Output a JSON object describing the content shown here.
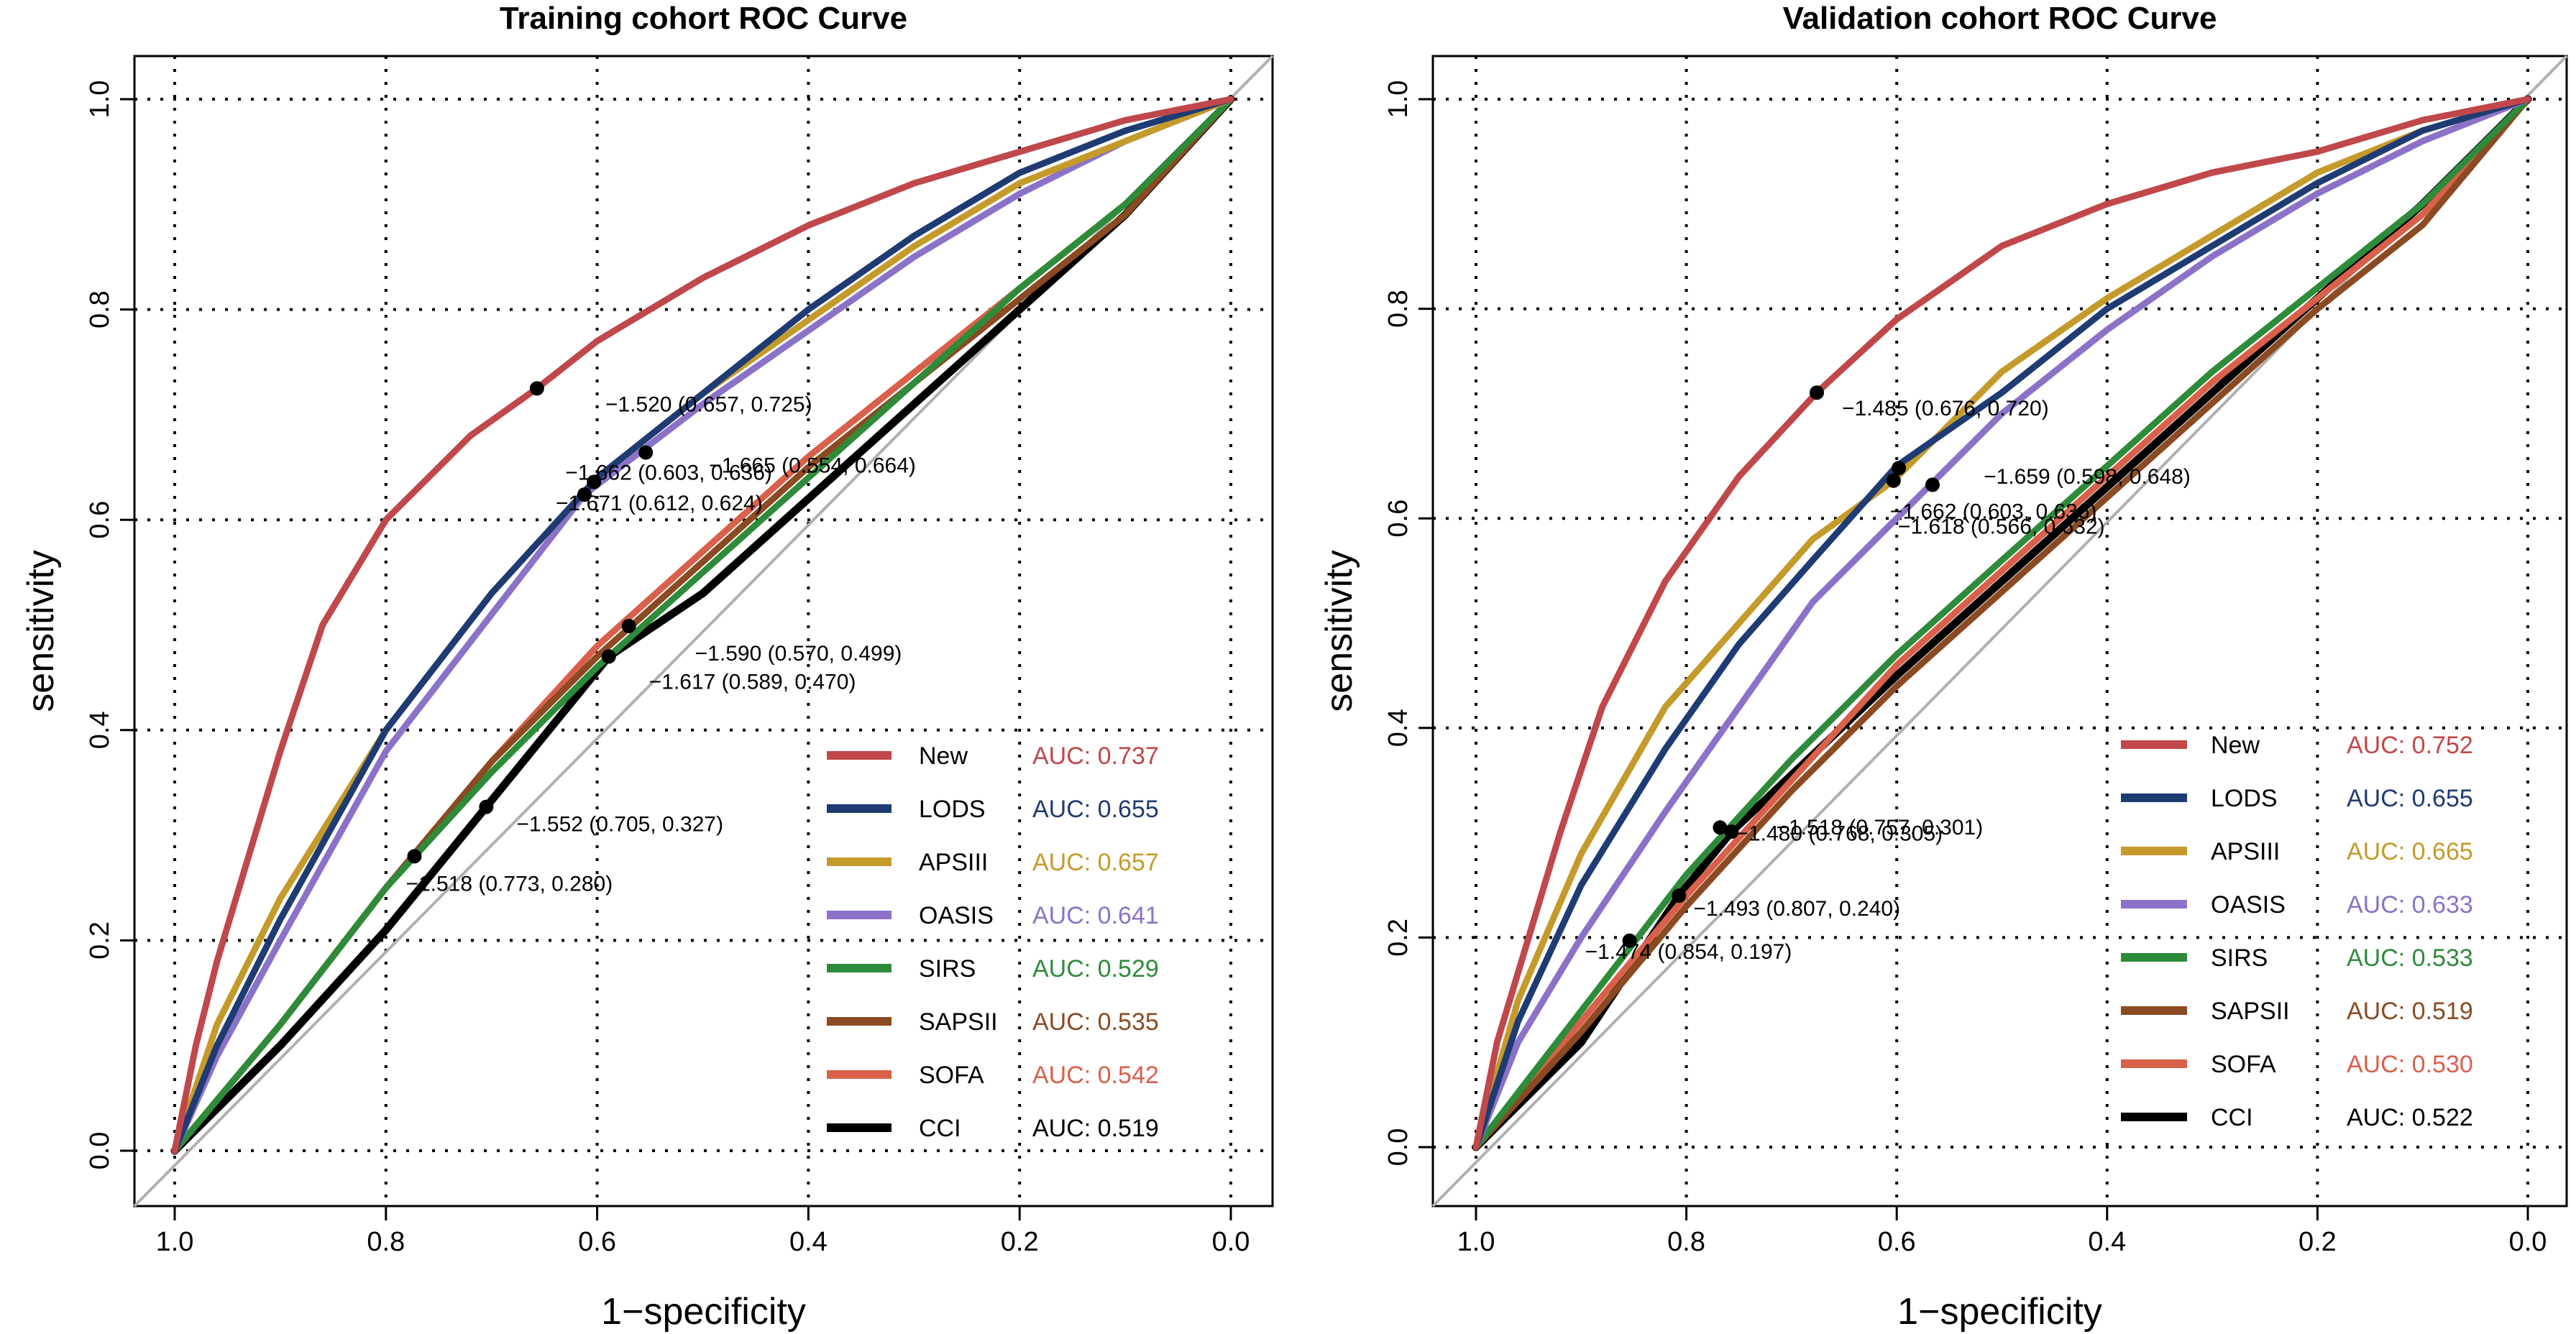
{
  "chart_data": [
    {
      "type": "line",
      "title": "Training cohort ROC Curve",
      "xlabel": "1−specificity",
      "ylabel": "sensitivity",
      "xlim": [
        1.0,
        0.0
      ],
      "ylim": [
        0.0,
        1.0
      ],
      "x_ticks": [
        "1.0",
        "0.8",
        "0.6",
        "0.4",
        "0.2",
        "0.0"
      ],
      "y_ticks": [
        "0.0",
        "0.2",
        "0.4",
        "0.6",
        "0.8",
        "1.0"
      ],
      "grid": true,
      "legend_position": "bottom-right",
      "series": [
        {
          "name": "New",
          "auc": "AUC: 0.737",
          "color": "#c0474a",
          "points": [
            [
              1.0,
              0.0
            ],
            [
              0.98,
              0.1
            ],
            [
              0.96,
              0.18
            ],
            [
              0.93,
              0.28
            ],
            [
              0.9,
              0.38
            ],
            [
              0.86,
              0.5
            ],
            [
              0.8,
              0.6
            ],
            [
              0.72,
              0.68
            ],
            [
              0.657,
              0.725
            ],
            [
              0.6,
              0.77
            ],
            [
              0.5,
              0.83
            ],
            [
              0.4,
              0.88
            ],
            [
              0.3,
              0.92
            ],
            [
              0.2,
              0.95
            ],
            [
              0.1,
              0.98
            ],
            [
              0.0,
              1.0
            ]
          ]
        },
        {
          "name": "LODS",
          "auc": "AUC: 0.655",
          "color": "#1f3b73",
          "points": [
            [
              1.0,
              0.0
            ],
            [
              0.96,
              0.1
            ],
            [
              0.9,
              0.22
            ],
            [
              0.8,
              0.4
            ],
            [
              0.7,
              0.53
            ],
            [
              0.6,
              0.64
            ],
            [
              0.5,
              0.72
            ],
            [
              0.4,
              0.8
            ],
            [
              0.3,
              0.87
            ],
            [
              0.2,
              0.93
            ],
            [
              0.1,
              0.97
            ],
            [
              0.0,
              1.0
            ]
          ]
        },
        {
          "name": "APSIII",
          "auc": "AUC: 0.657",
          "color": "#c49a2a",
          "points": [
            [
              1.0,
              0.0
            ],
            [
              0.96,
              0.12
            ],
            [
              0.9,
              0.24
            ],
            [
              0.8,
              0.4
            ],
            [
              0.7,
              0.53
            ],
            [
              0.6,
              0.64
            ],
            [
              0.5,
              0.72
            ],
            [
              0.4,
              0.79
            ],
            [
              0.3,
              0.86
            ],
            [
              0.2,
              0.92
            ],
            [
              0.1,
              0.96
            ],
            [
              0.0,
              1.0
            ]
          ]
        },
        {
          "name": "OASIS",
          "auc": "AUC: 0.641",
          "color": "#8b72c8",
          "points": [
            [
              1.0,
              0.0
            ],
            [
              0.96,
              0.09
            ],
            [
              0.9,
              0.2
            ],
            [
              0.8,
              0.38
            ],
            [
              0.7,
              0.51
            ],
            [
              0.612,
              0.624
            ],
            [
              0.5,
              0.71
            ],
            [
              0.4,
              0.78
            ],
            [
              0.3,
              0.85
            ],
            [
              0.2,
              0.91
            ],
            [
              0.1,
              0.96
            ],
            [
              0.0,
              1.0
            ]
          ]
        },
        {
          "name": "SIRS",
          "auc": "AUC: 0.529",
          "color": "#2e8b3a",
          "points": [
            [
              1.0,
              0.0
            ],
            [
              0.9,
              0.12
            ],
            [
              0.8,
              0.25
            ],
            [
              0.7,
              0.36
            ],
            [
              0.6,
              0.46
            ],
            [
              0.5,
              0.55
            ],
            [
              0.4,
              0.64
            ],
            [
              0.3,
              0.73
            ],
            [
              0.2,
              0.82
            ],
            [
              0.1,
              0.9
            ],
            [
              0.0,
              1.0
            ]
          ]
        },
        {
          "name": "SAPSII",
          "auc": "AUC: 0.535",
          "color": "#8b4a22",
          "points": [
            [
              1.0,
              0.0
            ],
            [
              0.9,
              0.12
            ],
            [
              0.8,
              0.25
            ],
            [
              0.7,
              0.37
            ],
            [
              0.6,
              0.47
            ],
            [
              0.5,
              0.56
            ],
            [
              0.4,
              0.65
            ],
            [
              0.3,
              0.73
            ],
            [
              0.2,
              0.81
            ],
            [
              0.1,
              0.89
            ],
            [
              0.0,
              1.0
            ]
          ]
        },
        {
          "name": "SOFA",
          "auc": "AUC: 0.542",
          "color": "#d9604a",
          "points": [
            [
              1.0,
              0.0
            ],
            [
              0.9,
              0.12
            ],
            [
              0.8,
              0.25
            ],
            [
              0.7,
              0.37
            ],
            [
              0.6,
              0.48
            ],
            [
              0.5,
              0.57
            ],
            [
              0.4,
              0.66
            ],
            [
              0.3,
              0.74
            ],
            [
              0.2,
              0.82
            ],
            [
              0.1,
              0.9
            ],
            [
              0.0,
              1.0
            ]
          ]
        },
        {
          "name": "CCI",
          "auc": "AUC: 0.519",
          "color": "#000000",
          "points": [
            [
              1.0,
              0.0
            ],
            [
              0.9,
              0.1
            ],
            [
              0.8,
              0.21
            ],
            [
              0.705,
              0.327
            ],
            [
              0.589,
              0.47
            ],
            [
              0.5,
              0.53
            ],
            [
              0.4,
              0.62
            ],
            [
              0.3,
              0.71
            ],
            [
              0.2,
              0.8
            ],
            [
              0.1,
              0.89
            ],
            [
              0.0,
              1.0
            ]
          ]
        }
      ],
      "annotations": [
        {
          "text": "−1.520 (0.657, 0.725)",
          "x": 0.657,
          "y": 0.725
        },
        {
          "text": "−1.665 (0.554, 0.664)",
          "x": 0.554,
          "y": 0.664
        },
        {
          "text": "−1.662 (0.603, 0.636)",
          "x": 0.603,
          "y": 0.636
        },
        {
          "text": "−1.671 (0.612, 0.624)",
          "x": 0.612,
          "y": 0.624
        },
        {
          "text": "−1.590 (0.570, 0.499)",
          "x": 0.57,
          "y": 0.499
        },
        {
          "text": "−1.617 (0.589, 0.470)",
          "x": 0.589,
          "y": 0.47
        },
        {
          "text": "−1.552 (0.705, 0.327)",
          "x": 0.705,
          "y": 0.327
        },
        {
          "text": "−1.518 (0.773, 0.280)",
          "x": 0.773,
          "y": 0.28
        }
      ]
    },
    {
      "type": "line",
      "title": "Validation cohort ROC Curve",
      "xlabel": "1−specificity",
      "ylabel": "sensitivity",
      "xlim": [
        1.0,
        0.0
      ],
      "ylim": [
        0.0,
        1.0
      ],
      "x_ticks": [
        "1.0",
        "0.8",
        "0.6",
        "0.4",
        "0.2",
        "0.0"
      ],
      "y_ticks": [
        "0.0",
        "0.2",
        "0.4",
        "0.6",
        "0.8",
        "1.0"
      ],
      "grid": true,
      "legend_position": "bottom-right",
      "series": [
        {
          "name": "New",
          "auc": "AUC: 0.752",
          "color": "#c0474a",
          "points": [
            [
              1.0,
              0.0
            ],
            [
              0.98,
              0.1
            ],
            [
              0.95,
              0.2
            ],
            [
              0.92,
              0.3
            ],
            [
              0.88,
              0.42
            ],
            [
              0.82,
              0.54
            ],
            [
              0.75,
              0.64
            ],
            [
              0.676,
              0.72
            ],
            [
              0.6,
              0.79
            ],
            [
              0.5,
              0.86
            ],
            [
              0.4,
              0.9
            ],
            [
              0.3,
              0.93
            ],
            [
              0.2,
              0.95
            ],
            [
              0.1,
              0.98
            ],
            [
              0.0,
              1.0
            ]
          ]
        },
        {
          "name": "LODS",
          "auc": "AUC: 0.655",
          "color": "#1f3b73",
          "points": [
            [
              1.0,
              0.0
            ],
            [
              0.96,
              0.12
            ],
            [
              0.9,
              0.25
            ],
            [
              0.82,
              0.38
            ],
            [
              0.75,
              0.48
            ],
            [
              0.68,
              0.56
            ],
            [
              0.6,
              0.65
            ],
            [
              0.5,
              0.72
            ],
            [
              0.4,
              0.8
            ],
            [
              0.3,
              0.86
            ],
            [
              0.2,
              0.92
            ],
            [
              0.1,
              0.97
            ],
            [
              0.0,
              1.0
            ]
          ]
        },
        {
          "name": "APSIII",
          "auc": "AUC: 0.665",
          "color": "#c49a2a",
          "points": [
            [
              1.0,
              0.0
            ],
            [
              0.96,
              0.14
            ],
            [
              0.9,
              0.28
            ],
            [
              0.82,
              0.42
            ],
            [
              0.75,
              0.5
            ],
            [
              0.68,
              0.58
            ],
            [
              0.603,
              0.636
            ],
            [
              0.5,
              0.74
            ],
            [
              0.4,
              0.81
            ],
            [
              0.3,
              0.87
            ],
            [
              0.2,
              0.93
            ],
            [
              0.1,
              0.97
            ],
            [
              0.0,
              1.0
            ]
          ]
        },
        {
          "name": "OASIS",
          "auc": "AUC: 0.633",
          "color": "#8b72c8",
          "points": [
            [
              1.0,
              0.0
            ],
            [
              0.96,
              0.1
            ],
            [
              0.9,
              0.2
            ],
            [
              0.82,
              0.32
            ],
            [
              0.75,
              0.42
            ],
            [
              0.68,
              0.52
            ],
            [
              0.6,
              0.6
            ],
            [
              0.5,
              0.7
            ],
            [
              0.4,
              0.78
            ],
            [
              0.3,
              0.85
            ],
            [
              0.2,
              0.91
            ],
            [
              0.1,
              0.96
            ],
            [
              0.0,
              1.0
            ]
          ]
        },
        {
          "name": "SIRS",
          "auc": "AUC: 0.533",
          "color": "#2e8b3a",
          "points": [
            [
              1.0,
              0.0
            ],
            [
              0.9,
              0.13
            ],
            [
              0.8,
              0.26
            ],
            [
              0.7,
              0.37
            ],
            [
              0.6,
              0.47
            ],
            [
              0.5,
              0.56
            ],
            [
              0.4,
              0.65
            ],
            [
              0.3,
              0.74
            ],
            [
              0.2,
              0.82
            ],
            [
              0.1,
              0.9
            ],
            [
              0.0,
              1.0
            ]
          ]
        },
        {
          "name": "SAPSII",
          "auc": "AUC: 0.519",
          "color": "#8b4a22",
          "points": [
            [
              1.0,
              0.0
            ],
            [
              0.9,
              0.11
            ],
            [
              0.8,
              0.23
            ],
            [
              0.7,
              0.34
            ],
            [
              0.6,
              0.44
            ],
            [
              0.5,
              0.53
            ],
            [
              0.4,
              0.62
            ],
            [
              0.3,
              0.71
            ],
            [
              0.2,
              0.8
            ],
            [
              0.1,
              0.88
            ],
            [
              0.0,
              1.0
            ]
          ]
        },
        {
          "name": "SOFA",
          "auc": "AUC: 0.530",
          "color": "#d9604a",
          "points": [
            [
              1.0,
              0.0
            ],
            [
              0.9,
              0.12
            ],
            [
              0.8,
              0.24
            ],
            [
              0.7,
              0.35
            ],
            [
              0.6,
              0.46
            ],
            [
              0.5,
              0.55
            ],
            [
              0.4,
              0.64
            ],
            [
              0.3,
              0.73
            ],
            [
              0.2,
              0.81
            ],
            [
              0.1,
              0.89
            ],
            [
              0.0,
              1.0
            ]
          ]
        },
        {
          "name": "CCI",
          "auc": "AUC: 0.522",
          "color": "#000000",
          "points": [
            [
              1.0,
              0.0
            ],
            [
              0.9,
              0.1
            ],
            [
              0.807,
              0.24
            ],
            [
              0.757,
              0.301
            ],
            [
              0.6,
              0.45
            ],
            [
              0.5,
              0.54
            ],
            [
              0.4,
              0.63
            ],
            [
              0.3,
              0.72
            ],
            [
              0.2,
              0.81
            ],
            [
              0.1,
              0.9
            ],
            [
              0.0,
              1.0
            ]
          ]
        }
      ],
      "annotations": [
        {
          "text": "−1.485 (0.676, 0.720)",
          "x": 0.676,
          "y": 0.72
        },
        {
          "text": "−1.659 (0.598, 0.648)",
          "x": 0.598,
          "y": 0.648
        },
        {
          "text": "−1.662 (0.603, 0.636)",
          "x": 0.603,
          "y": 0.636
        },
        {
          "text": "−1.618 (0.566, 0.632)",
          "x": 0.566,
          "y": 0.632
        },
        {
          "text": "−1.518 (0.757, 0.301)",
          "x": 0.757,
          "y": 0.301
        },
        {
          "text": "−1.480 (0.768, 0.305)",
          "x": 0.768,
          "y": 0.305
        },
        {
          "text": "−1.493 (0.807, 0.240)",
          "x": 0.807,
          "y": 0.24
        },
        {
          "text": "−1.474 (0.854, 0.197)",
          "x": 0.854,
          "y": 0.197
        }
      ]
    }
  ]
}
